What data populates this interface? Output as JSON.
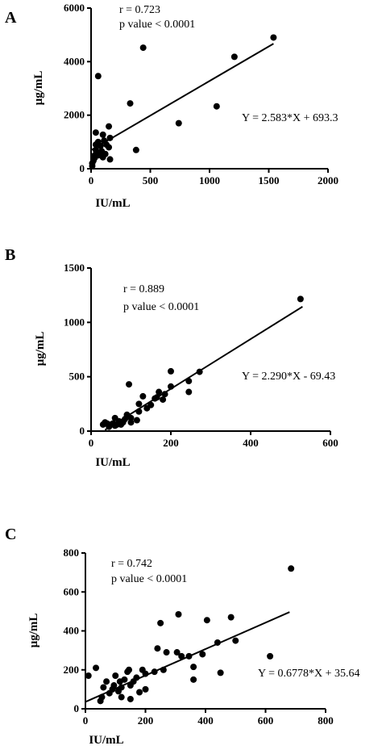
{
  "chart_data": [
    {
      "panel": "A",
      "type": "scatter",
      "xlabel": "IU/mL",
      "ylabel": "µg/mL",
      "xlim": [
        0,
        2000
      ],
      "ylim": [
        0,
        6000
      ],
      "xticks": [
        0,
        500,
        1000,
        1500,
        2000
      ],
      "yticks": [
        0,
        2000,
        4000,
        6000
      ],
      "annotations": {
        "r": "r = 0.723",
        "p": "p value < 0.0001",
        "equation": "Y = 2.583*X + 693.3"
      },
      "fit": {
        "slope": 2.583,
        "intercept": 693.3,
        "x_range": [
          0,
          1540
        ]
      },
      "points": [
        [
          1540,
          4900
        ],
        [
          1210,
          4180
        ],
        [
          1060,
          2330
        ],
        [
          740,
          1700
        ],
        [
          440,
          4520
        ],
        [
          380,
          700
        ],
        [
          330,
          2440
        ],
        [
          60,
          3460
        ],
        [
          40,
          1350
        ],
        [
          150,
          1580
        ],
        [
          160,
          1150
        ],
        [
          100,
          1270
        ],
        [
          110,
          1050
        ],
        [
          130,
          900
        ],
        [
          150,
          800
        ],
        [
          80,
          850
        ],
        [
          90,
          650
        ],
        [
          120,
          550
        ],
        [
          60,
          500
        ],
        [
          40,
          700
        ],
        [
          30,
          500
        ],
        [
          20,
          300
        ],
        [
          30,
          400
        ],
        [
          70,
          600
        ],
        [
          100,
          430
        ],
        [
          160,
          350
        ],
        [
          40,
          900
        ],
        [
          60,
          1000
        ],
        [
          10,
          200
        ],
        [
          10,
          100
        ]
      ]
    },
    {
      "panel": "B",
      "type": "scatter",
      "xlabel": "IU/mL",
      "ylabel": "µg/mL",
      "xlim": [
        0,
        600
      ],
      "ylim": [
        0,
        1500
      ],
      "xticks": [
        0,
        200,
        400,
        600
      ],
      "yticks": [
        0,
        500,
        1000,
        1500
      ],
      "annotations": {
        "r": "r = 0.889",
        "p": "p value < 0.0001",
        "equation": "Y = 2.290*X - 69.43"
      },
      "fit": {
        "slope": 2.29,
        "intercept": -69.43,
        "x_range": [
          35,
          530
        ]
      },
      "points": [
        [
          525,
          1215
        ],
        [
          272,
          545
        ],
        [
          245,
          460
        ],
        [
          245,
          360
        ],
        [
          200,
          550
        ],
        [
          200,
          410
        ],
        [
          185,
          340
        ],
        [
          180,
          290
        ],
        [
          170,
          360
        ],
        [
          165,
          310
        ],
        [
          160,
          300
        ],
        [
          150,
          240
        ],
        [
          140,
          210
        ],
        [
          130,
          320
        ],
        [
          120,
          250
        ],
        [
          120,
          180
        ],
        [
          115,
          100
        ],
        [
          100,
          120
        ],
        [
          95,
          430
        ],
        [
          90,
          150
        ],
        [
          85,
          110
        ],
        [
          80,
          80
        ],
        [
          75,
          60
        ],
        [
          70,
          90
        ],
        [
          65,
          60
        ],
        [
          60,
          50
        ],
        [
          55,
          70
        ],
        [
          50,
          60
        ],
        [
          45,
          40
        ],
        [
          40,
          70
        ],
        [
          35,
          80
        ],
        [
          30,
          60
        ],
        [
          60,
          120
        ],
        [
          100,
          80
        ]
      ]
    },
    {
      "panel": "C",
      "type": "scatter",
      "xlabel": "IU/mL",
      "ylabel": "µg/mL",
      "xlim": [
        0,
        800
      ],
      "ylim": [
        0,
        800
      ],
      "xticks": [
        0,
        200,
        400,
        600,
        800
      ],
      "yticks": [
        0,
        200,
        400,
        600,
        800
      ],
      "annotations": {
        "r": "r = 0.742",
        "p": "p value < 0.0001",
        "equation": "Y = 0.6778*X + 35.64"
      },
      "fit": {
        "slope": 0.6778,
        "intercept": 35.64,
        "x_range": [
          0,
          680
        ]
      },
      "points": [
        [
          685,
          720
        ],
        [
          615,
          270
        ],
        [
          485,
          470
        ],
        [
          500,
          350
        ],
        [
          440,
          340
        ],
        [
          450,
          185
        ],
        [
          405,
          455
        ],
        [
          390,
          280
        ],
        [
          360,
          150
        ],
        [
          360,
          215
        ],
        [
          345,
          270
        ],
        [
          320,
          270
        ],
        [
          305,
          290
        ],
        [
          310,
          485
        ],
        [
          250,
          440
        ],
        [
          240,
          310
        ],
        [
          270,
          290
        ],
        [
          260,
          200
        ],
        [
          230,
          190
        ],
        [
          200,
          180
        ],
        [
          190,
          200
        ],
        [
          180,
          85
        ],
        [
          170,
          160
        ],
        [
          160,
          140
        ],
        [
          150,
          120
        ],
        [
          145,
          200
        ],
        [
          140,
          190
        ],
        [
          130,
          150
        ],
        [
          120,
          110
        ],
        [
          115,
          140
        ],
        [
          110,
          90
        ],
        [
          100,
          170
        ],
        [
          95,
          120
        ],
        [
          90,
          100
        ],
        [
          80,
          80
        ],
        [
          70,
          140
        ],
        [
          60,
          110
        ],
        [
          55,
          60
        ],
        [
          50,
          40
        ],
        [
          35,
          210
        ],
        [
          10,
          170
        ],
        [
          200,
          100
        ],
        [
          150,
          50
        ],
        [
          120,
          60
        ]
      ]
    }
  ]
}
